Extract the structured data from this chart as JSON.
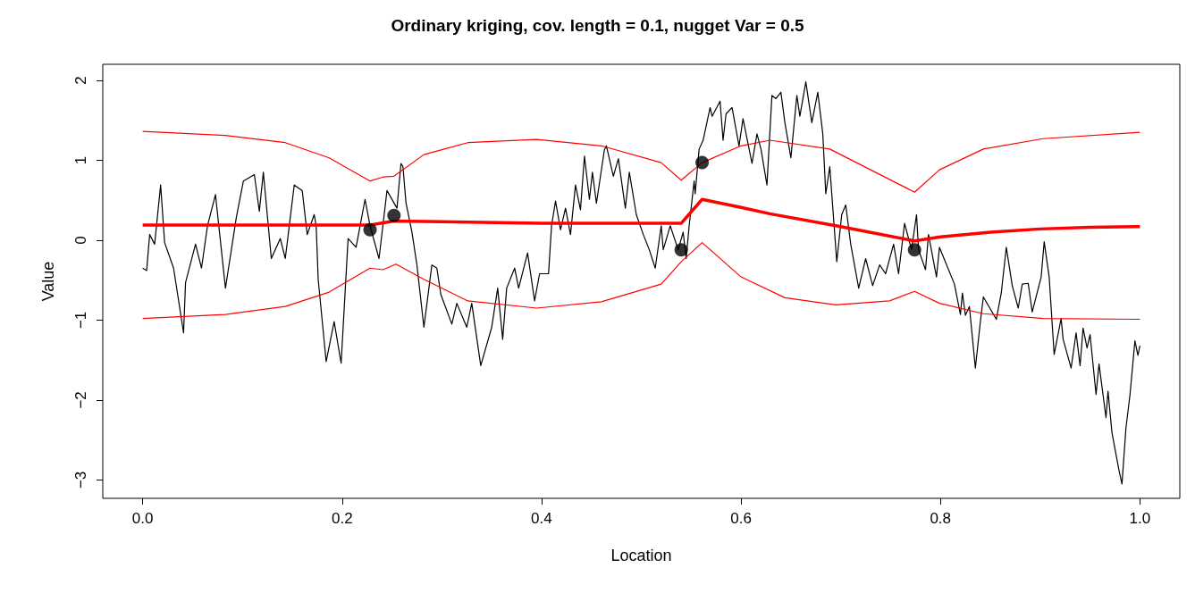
{
  "chart_data": {
    "type": "line",
    "title": "Ordinary kriging, cov. length = 0.1, nugget Var = 0.5",
    "xlabel": "Location",
    "ylabel": "Value",
    "xlim": [
      -0.04,
      1.04
    ],
    "ylim": [
      -3.23,
      2.2
    ],
    "xticks": [
      {
        "value": 0,
        "label": "0.0"
      },
      {
        "value": 0.2,
        "label": "0.2"
      },
      {
        "value": 0.4,
        "label": "0.4"
      },
      {
        "value": 0.6,
        "label": "0.6"
      },
      {
        "value": 0.8,
        "label": "0.8"
      },
      {
        "value": 1,
        "label": "1.0"
      }
    ],
    "yticks": [
      {
        "value": -3,
        "label": "−3"
      },
      {
        "value": -2,
        "label": "−2"
      },
      {
        "value": -1,
        "label": "−1"
      },
      0,
      1,
      2
    ],
    "series": [
      {
        "color": "#000000",
        "x": [
          0,
          0.004,
          0.007,
          0.012,
          0.018,
          0.022,
          0.031,
          0.041,
          0.043,
          0.053,
          0.059,
          0.065,
          0.073,
          0.083,
          0.094,
          0.101,
          0.112,
          0.117,
          0.121,
          0.129,
          0.138,
          0.143,
          0.152,
          0.16,
          0.165,
          0.172,
          0.174,
          0.176,
          0.184,
          0.192,
          0.199,
          0.206,
          0.214,
          0.223,
          0.228,
          0.237,
          0.245,
          0.255,
          0.259,
          0.261,
          0.264,
          0.27,
          0.275,
          0.282,
          0.29,
          0.295,
          0.299,
          0.31,
          0.315,
          0.325,
          0.33,
          0.339,
          0.35,
          0.356,
          0.361,
          0.365,
          0.373,
          0.377,
          0.386,
          0.393,
          0.398,
          0.407,
          0.41,
          0.414,
          0.419,
          0.424,
          0.429,
          0.434,
          0.439,
          0.443,
          0.448,
          0.451,
          0.455,
          0.463,
          0.465,
          0.472,
          0.477,
          0.484,
          0.488,
          0.495,
          0.502,
          0.508,
          0.514,
          0.52,
          0.522,
          0.529,
          0.537,
          0.542,
          0.545,
          0.548,
          0.553,
          0.554,
          0.558,
          0.562,
          0.569,
          0.571,
          0.579,
          0.582,
          0.585,
          0.591,
          0.598,
          0.602,
          0.611,
          0.616,
          0.62,
          0.626,
          0.631,
          0.635,
          0.64,
          0.644,
          0.65,
          0.656,
          0.659,
          0.665,
          0.671,
          0.677,
          0.682,
          0.685,
          0.689,
          0.696,
          0.701,
          0.705,
          0.71,
          0.718,
          0.725,
          0.732,
          0.739,
          0.745,
          0.753,
          0.758,
          0.764,
          0.771,
          0.776,
          0.778,
          0.785,
          0.788,
          0.796,
          0.799,
          0.814,
          0.82,
          0.822,
          0.825,
          0.829,
          0.835,
          0.84,
          0.843,
          0.856,
          0.861,
          0.866,
          0.872,
          0.878,
          0.882,
          0.888,
          0.892,
          0.901,
          0.904,
          0.909,
          0.914,
          0.921,
          0.923,
          0.931,
          0.936,
          0.94,
          0.943,
          0.947,
          0.95,
          0.956,
          0.959,
          0.966,
          0.968,
          0.972,
          0.979,
          0.982,
          0.986,
          0.99,
          0.995,
          0.998,
          1.0
        ],
        "values": [
          -0.35,
          -0.38,
          0.07,
          -0.05,
          0.69,
          -0.03,
          -0.35,
          -1.16,
          -0.53,
          -0.05,
          -0.35,
          0.18,
          0.57,
          -0.6,
          0.29,
          0.74,
          0.82,
          0.36,
          0.85,
          -0.23,
          0.02,
          -0.23,
          0.69,
          0.62,
          0.07,
          0.32,
          0.18,
          -0.49,
          -1.52,
          -1.02,
          -1.54,
          0.02,
          -0.09,
          0.51,
          0.18,
          -0.23,
          0.62,
          0.4,
          0.96,
          0.92,
          0.47,
          0.1,
          -0.31,
          -1.09,
          -0.31,
          -0.35,
          -0.68,
          -1.05,
          -0.79,
          -1.09,
          -0.79,
          -1.57,
          -1.09,
          -0.6,
          -1.24,
          -0.6,
          -0.35,
          -0.6,
          -0.16,
          -0.76,
          -0.42,
          -0.42,
          0.18,
          0.49,
          0.13,
          0.4,
          0.07,
          0.69,
          0.38,
          1.05,
          0.51,
          0.85,
          0.46,
          1.13,
          1.18,
          0.8,
          1.02,
          0.4,
          0.85,
          0.32,
          0.07,
          -0.12,
          -0.35,
          0.18,
          -0.12,
          0.18,
          -0.12,
          0.1,
          -0.23,
          0.18,
          0.74,
          0.58,
          1.14,
          1.25,
          1.66,
          1.55,
          1.74,
          1.25,
          1.58,
          1.66,
          1.18,
          1.52,
          0.96,
          1.33,
          1.14,
          0.69,
          1.81,
          1.77,
          1.85,
          1.47,
          1.03,
          1.81,
          1.55,
          1.98,
          1.47,
          1.85,
          1.33,
          0.58,
          0.92,
          -0.27,
          0.32,
          0.44,
          -0.05,
          -0.6,
          -0.23,
          -0.57,
          -0.31,
          -0.42,
          -0.05,
          -0.42,
          0.21,
          -0.12,
          0.32,
          -0.12,
          -0.37,
          0.07,
          -0.46,
          -0.09,
          -0.55,
          -0.93,
          -0.66,
          -0.94,
          -0.83,
          -1.6,
          -1.02,
          -0.71,
          -0.99,
          -0.66,
          -0.09,
          -0.57,
          -0.85,
          -0.55,
          -0.54,
          -0.9,
          -0.46,
          -0.02,
          -0.46,
          -1.43,
          -0.98,
          -1.24,
          -1.6,
          -1.16,
          -1.57,
          -1.1,
          -1.35,
          -1.18,
          -1.93,
          -1.55,
          -2.22,
          -1.89,
          -2.41,
          -2.88,
          -3.05,
          -2.35,
          -1.94,
          -1.26,
          -1.44,
          -1.32
        ]
      },
      {
        "color": "#ff0000",
        "x": [
          0,
          0.083,
          0.143,
          0.187,
          0.228,
          0.241,
          0.252,
          0.282,
          0.326,
          0.395,
          0.46,
          0.52,
          0.54,
          0.561,
          0.6,
          0.629,
          0.689,
          0.774,
          0.799,
          0.843,
          0.903,
          1.0
        ],
        "values": [
          1.36,
          1.31,
          1.22,
          1.03,
          0.74,
          0.79,
          0.8,
          1.07,
          1.22,
          1.26,
          1.18,
          0.97,
          0.75,
          0.97,
          1.18,
          1.25,
          1.14,
          0.6,
          0.88,
          1.14,
          1.27,
          1.35
        ]
      },
      {
        "color": "#ff0000",
        "x": [
          0,
          0.083,
          0.143,
          0.187,
          0.228,
          0.241,
          0.254,
          0.282,
          0.326,
          0.395,
          0.46,
          0.52,
          0.54,
          0.561,
          0.6,
          0.644,
          0.695,
          0.749,
          0.774,
          0.799,
          0.843,
          0.903,
          1.0
        ],
        "values": [
          -0.98,
          -0.93,
          -0.83,
          -0.65,
          -0.35,
          -0.37,
          -0.3,
          -0.49,
          -0.76,
          -0.85,
          -0.77,
          -0.55,
          -0.27,
          -0.03,
          -0.46,
          -0.72,
          -0.81,
          -0.76,
          -0.64,
          -0.79,
          -0.92,
          -0.98,
          -0.99
        ]
      },
      {
        "color": "#ff0000",
        "x": [
          0,
          0.1,
          0.228,
          0.252,
          0.3,
          0.4,
          0.5,
          0.54,
          0.561,
          0.6,
          0.629,
          0.7,
          0.774,
          0.8,
          0.85,
          0.9,
          0.95,
          1.0
        ],
        "values": [
          0.19,
          0.19,
          0.19,
          0.24,
          0.23,
          0.21,
          0.21,
          0.21,
          0.51,
          0.41,
          0.33,
          0.17,
          -0.01,
          0.04,
          0.1,
          0.14,
          0.16,
          0.17
        ]
      },
      {
        "type": "scatter",
        "color": "#000000",
        "marker": "circle",
        "x": [
          0.228,
          0.252,
          0.54,
          0.561,
          0.774
        ],
        "values": [
          0.13,
          0.31,
          -0.12,
          0.97,
          -0.12
        ]
      }
    ]
  }
}
